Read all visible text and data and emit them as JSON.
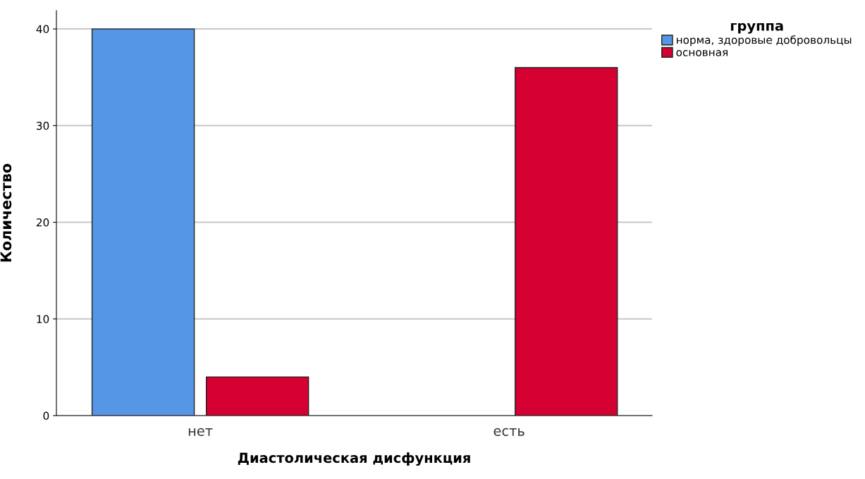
{
  "chart_data": {
    "type": "bar",
    "xlabel": "Диастолическая дисфункция",
    "ylabel": "Количество",
    "legend_title": "группа",
    "categories": [
      "нет",
      "есть"
    ],
    "series": [
      {
        "name": "норма, здоровые добровольцы",
        "color": "#5596e6",
        "values": [
          40,
          0
        ]
      },
      {
        "name": "основная",
        "color": "#d50032",
        "values": [
          4,
          36
        ]
      }
    ],
    "ylim": [
      0,
      41.9
    ],
    "yticks": [
      0,
      10,
      20,
      30,
      40
    ],
    "grid": "y",
    "legend": "top right"
  }
}
